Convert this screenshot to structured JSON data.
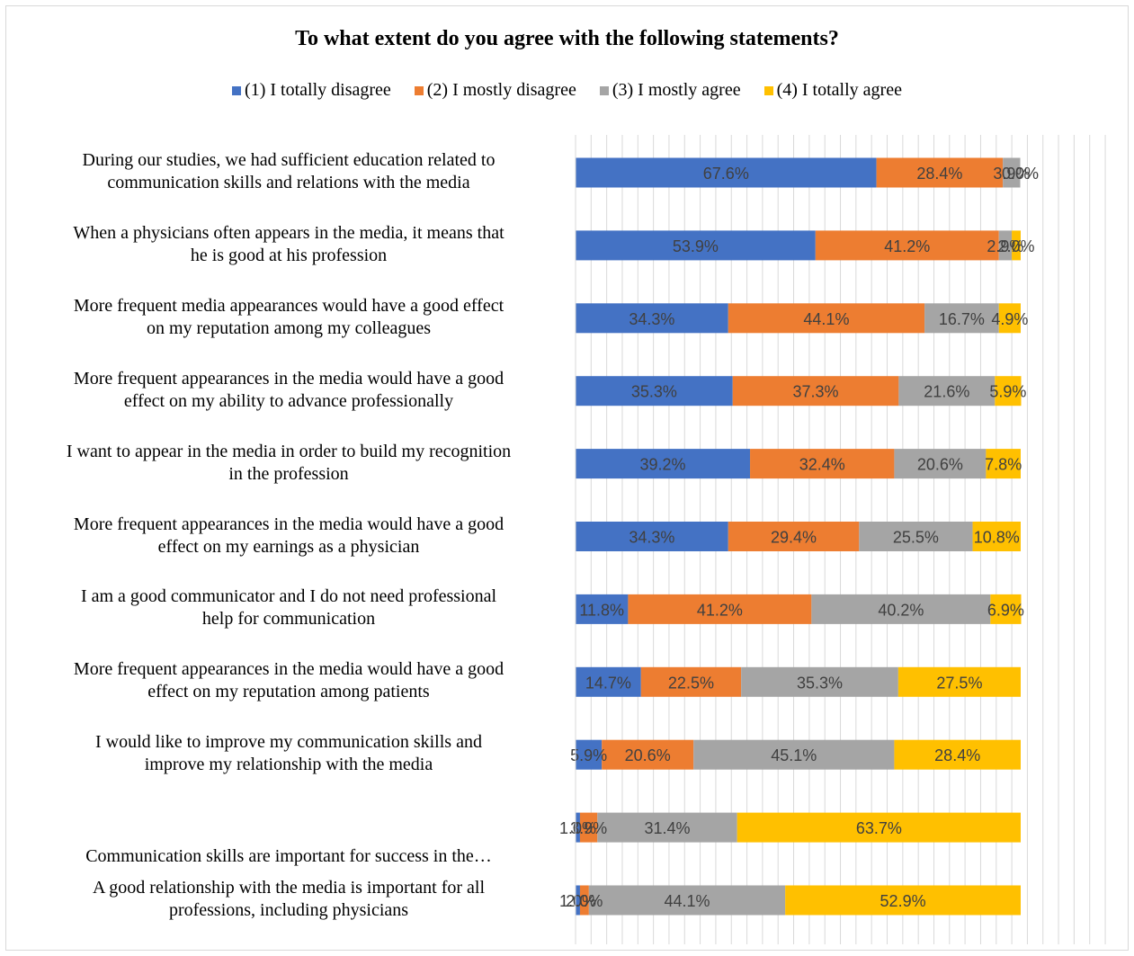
{
  "chart_data": {
    "type": "bar",
    "orientation": "horizontal",
    "stacked": "percent",
    "title": "To what extent do you agree with the following statements?",
    "legend_position": "top",
    "grid": true,
    "xlim": [
      0,
      120
    ],
    "categories": [
      "During our studies, we had sufficient education related to communication skills and relations with the media",
      "When a physicians often appears in the media, it means that he is good at his profession",
      "More frequent media appearances would have a good effect on my reputation among my colleagues",
      "More frequent appearances in the media would have a good effect on my ability to advance professionally",
      "I want to appear in the media in order to build my recognition in the profession",
      "More frequent appearances in the media would have a good effect on my earnings as a physician",
      "I am a good communicator and I do not need professional help for communication",
      "More frequent appearances in the media would have a good effect on my reputation among patients",
      "I would like to improve my communication skills and improve my relationship with the media",
      "Communication skills are important for success in the…",
      "A good relationship with the media is important for all professions, including physicians"
    ],
    "series": [
      {
        "name": "(1) I totally disagree",
        "color": "#4472C4",
        "values": [
          67.6,
          53.9,
          34.3,
          35.3,
          39.2,
          34.3,
          11.8,
          14.7,
          5.9,
          1.0,
          1.0
        ],
        "labels": [
          "67.6%",
          "53.9%",
          "34.3%",
          "35.3%",
          "39.2%",
          "34.3%",
          "11.8%",
          "14.7%",
          "5.9%",
          "1.0%",
          "1.0%"
        ]
      },
      {
        "name": "(2) I mostly disagree",
        "color": "#ED7D31",
        "values": [
          28.4,
          41.2,
          44.1,
          37.3,
          32.4,
          29.4,
          41.2,
          22.5,
          20.6,
          3.9,
          2.0
        ],
        "labels": [
          "28.4%",
          "41.2%",
          "44.1%",
          "37.3%",
          "32.4%",
          "29.4%",
          "41.2%",
          "22.5%",
          "20.6%",
          "3.9%",
          "2.0%"
        ]
      },
      {
        "name": "(3) I mostly agree",
        "color": "#A5A5A5",
        "values": [
          3.9,
          2.9,
          16.7,
          21.6,
          20.6,
          25.5,
          40.2,
          35.3,
          45.1,
          31.4,
          44.1
        ],
        "labels": [
          "3.9%",
          "2.9%",
          "16.7%",
          "21.6%",
          "20.6%",
          "25.5%",
          "40.2%",
          "35.3%",
          "45.1%",
          "31.4%",
          "44.1%"
        ]
      },
      {
        "name": "(4) I totally agree",
        "color": "#FFC000",
        "values": [
          0.0,
          2.0,
          4.9,
          5.9,
          7.8,
          10.8,
          6.9,
          27.5,
          28.4,
          63.7,
          52.9
        ],
        "labels": [
          "0.0%",
          "2.0%",
          "4.9%",
          "5.9%",
          "7.8%",
          "10.8%",
          "6.9%",
          "27.5%",
          "28.4%",
          "63.7%",
          "52.9%"
        ]
      }
    ]
  }
}
